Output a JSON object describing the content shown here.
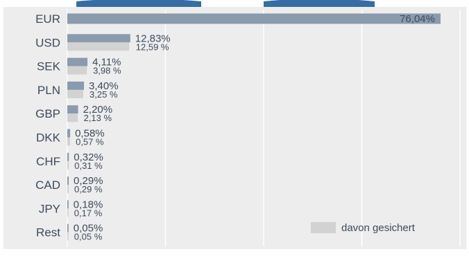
{
  "chart_data": {
    "type": "bar",
    "orientation": "horizontal",
    "categories": [
      "EUR",
      "USD",
      "SEK",
      "PLN",
      "GBP",
      "DKK",
      "CHF",
      "CAD",
      "JPY",
      "Rest"
    ],
    "series": [
      {
        "values": [
          76.04,
          12.83,
          4.11,
          3.4,
          2.2,
          0.58,
          0.32,
          0.29,
          0.18,
          0.05
        ],
        "labels": [
          "76,04%",
          "12,83%",
          "4,11%",
          "3,40%",
          "2,20%",
          "0,58%",
          "0,32%",
          "0,29%",
          "0,18%",
          "0,05%"
        ],
        "color": "#8a9bad"
      },
      {
        "name": "davon gesichert",
        "values": [
          null,
          12.59,
          3.98,
          3.25,
          2.13,
          0.57,
          0.31,
          0.29,
          0.17,
          0.05
        ],
        "labels": [
          "",
          "12,59 %",
          "3,98 %",
          "3,25 %",
          "2,13 %",
          "0,57 %",
          "0,31 %",
          "0,29 %",
          "0,17 %",
          "0,05 %"
        ],
        "color": "#d2d2d2"
      }
    ],
    "xlim": [
      0,
      80
    ],
    "grid": true,
    "legend": "bottom-right",
    "colors": {
      "background": "#ededed",
      "gridline": "#ffffff",
      "label": "#3c4a5c",
      "title_fragment": "#1f5d9a"
    }
  }
}
